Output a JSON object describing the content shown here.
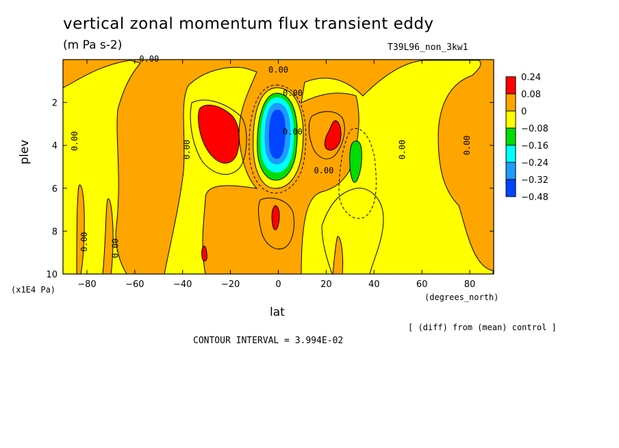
{
  "chart_data": {
    "type": "heatmap",
    "title": "vertical zonal momentum flux transient eddy",
    "units": "(m Pa s-2)",
    "run_id": "T39L96_non_3kw1",
    "xlabel": "lat",
    "xunits": "(degrees_north)",
    "ylabel": "plev",
    "yunits": "(x1E4 Pa)",
    "xlim": [
      -90,
      90
    ],
    "ylim": [
      0,
      10
    ],
    "y_inverted": true,
    "x_ticks": [
      -80,
      -60,
      -40,
      -20,
      0,
      20,
      40,
      60,
      80
    ],
    "y_ticks": [
      2,
      4,
      6,
      8,
      10
    ],
    "contour_interval_label": "CONTOUR INTERVAL = 3.994E-02",
    "note": "[ (diff) from (mean) control ]",
    "legend": {
      "labels": [
        "0.24",
        "0.08",
        "0",
        "−0.08",
        "−0.16",
        "−0.24",
        "−0.32",
        "−0.48"
      ],
      "colors": [
        "#ff0000",
        "#ffa500",
        "#ffff00",
        "#00dd00",
        "#00ffff",
        "#1e9bff",
        "#0044ff"
      ]
    },
    "contour_labels": [
      {
        "text": "0.00",
        "lat": -54,
        "p": 0.1
      },
      {
        "text": "0.00",
        "lat": 0,
        "p": 0.6
      },
      {
        "text": "0.00",
        "lat": 6,
        "p": 1.7
      },
      {
        "text": "0.00",
        "lat": -84,
        "p": 3.8
      },
      {
        "text": "0.00",
        "lat": -37,
        "p": 4.2
      },
      {
        "text": "0.00",
        "lat": 19,
        "p": 5.3
      },
      {
        "text": "0.00",
        "lat": 53,
        "p": 4.2
      },
      {
        "text": "0.00",
        "lat": 80,
        "p": 4.0
      },
      {
        "text": "0.00",
        "lat": -80,
        "p": 8.5
      },
      {
        "text": "0.00",
        "lat": -67,
        "p": 8.8
      },
      {
        "text": "0.00",
        "lat": 6,
        "p": 3.5
      }
    ],
    "regions": [
      {
        "level": "0.08",
        "color": "#ffa500",
        "desc": "high latitudes north of 60N, near-tropopause band and tropical column",
        "lat_range": [
          -90,
          90
        ],
        "p_range": [
          0,
          10
        ]
      },
      {
        "level": "0.24",
        "color": "#ff0000",
        "desc": "southern subtropical maximum",
        "lat_range": [
          -34,
          -16
        ],
        "p_range": [
          2.2,
          5.0
        ]
      },
      {
        "level": "0.24",
        "color": "#ff0000",
        "desc": "northern subtropical maximum",
        "lat_range": [
          20,
          27
        ],
        "p_range": [
          3.0,
          4.4
        ]
      },
      {
        "level": "0.24",
        "color": "#ff0000",
        "desc": "lower tropospheric equatorial maximum",
        "lat_range": [
          -2,
          2
        ],
        "p_range": [
          7.0,
          8.0
        ]
      },
      {
        "level": "-0.08",
        "color": "#ffff00",
        "desc": "equatorial negative region",
        "lat_range": [
          -8,
          8
        ],
        "p_range": [
          1.2,
          5.8
        ]
      },
      {
        "level": "-0.16",
        "color": "#00dd00",
        "desc": "equatorial core / northern minimum",
        "lat_range": [
          -7,
          7
        ],
        "p_range": [
          1.5,
          5.6
        ]
      },
      {
        "level": "-0.48",
        "color": "#0044ff",
        "desc": "equatorial strongest minimum",
        "lat_range": [
          -3,
          3
        ],
        "p_range": [
          2.0,
          4.5
        ]
      },
      {
        "level": "-0.16",
        "color": "#00dd00",
        "desc": "northern subtropical minimum",
        "lat_range": [
          30,
          34
        ],
        "p_range": [
          3.9,
          5.7
        ]
      }
    ]
  }
}
